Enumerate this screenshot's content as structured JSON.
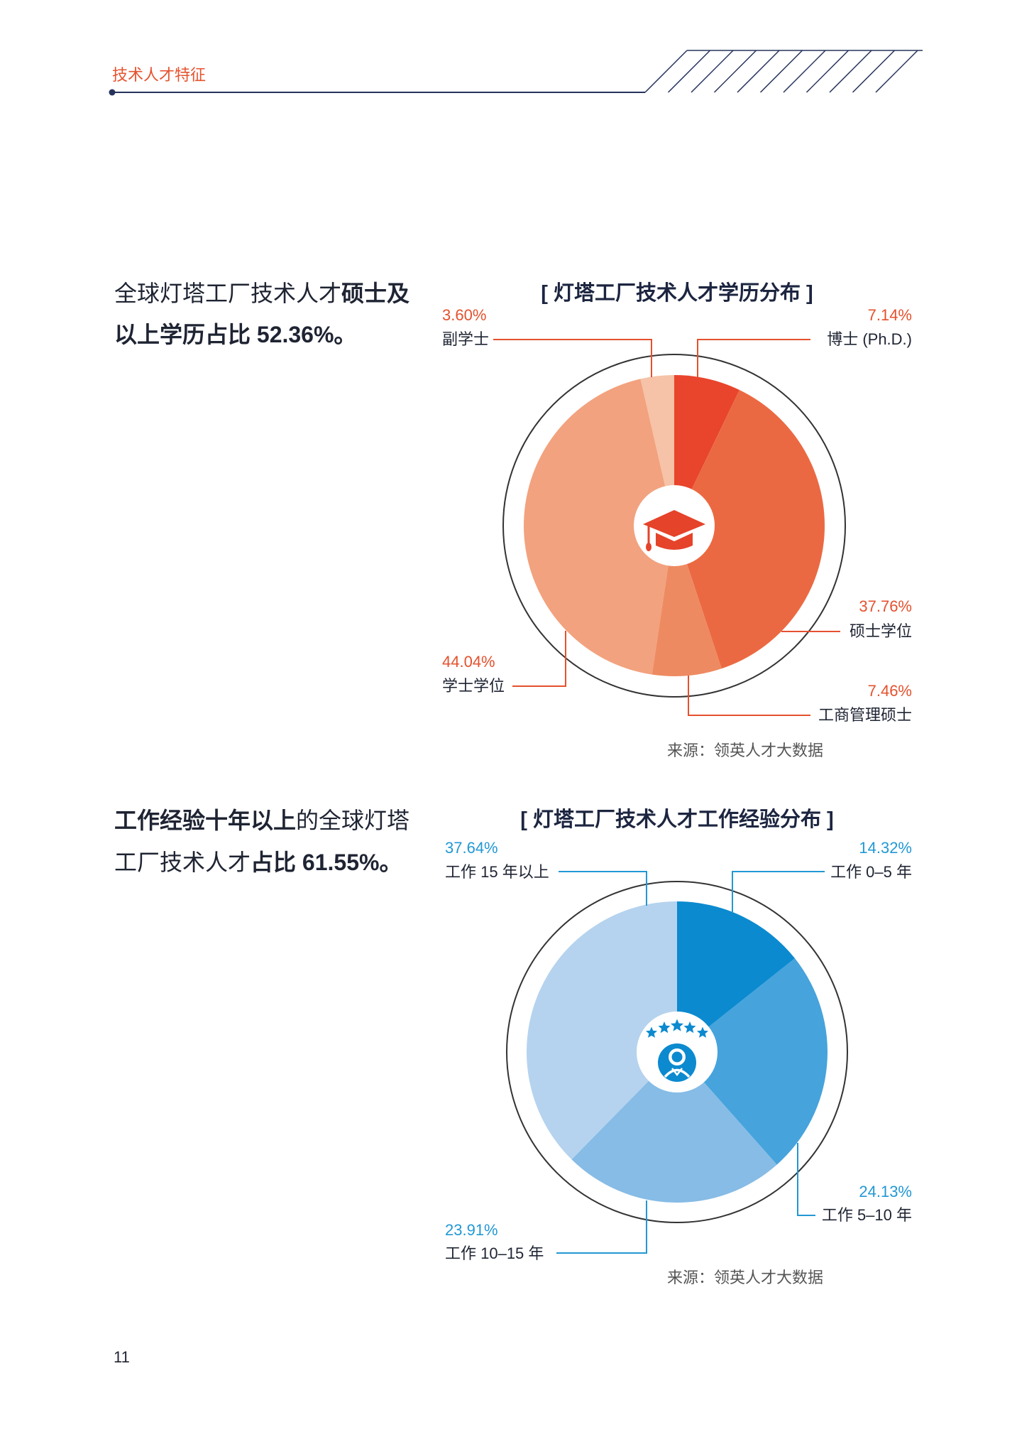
{
  "header": {
    "section_title": "技术人才特征"
  },
  "education": {
    "summary": {
      "line1_regular": "全球灯塔工厂技术人才",
      "line1_bold": "硕士及",
      "line2_bold": "以上学历占比 52.36%。"
    },
    "source": "来源：领英人才大数据"
  },
  "experience": {
    "summary": {
      "line1_bold": "工作经验十年以上",
      "line1_regular": "的全球灯塔",
      "line2_regular": "工厂技术人才",
      "line2_bold": "占比 61.55%。"
    },
    "source": "来源：领英人才大数据"
  },
  "page_number": "11",
  "colors": {
    "header_accent": "#E5532F",
    "rule_navy": "#26335C",
    "education_accent": "#E4512D",
    "experience_accent": "#2298D4",
    "text_dark": "#1F2433",
    "source_gray": "#555555"
  },
  "chart_data": [
    {
      "type": "pie",
      "title": "[ 灯塔工厂技术人才学历分布 ]",
      "center_icon": "graduation-cap-icon",
      "categories": [
        "博士 (Ph.D.)",
        "硕士学位",
        "工商管理硕士",
        "学士学位",
        "副学士"
      ],
      "values": [
        7.14,
        37.76,
        7.46,
        44.04,
        3.6
      ],
      "value_labels": [
        "7.14%",
        "37.76%",
        "7.46%",
        "44.04%",
        "3.60%"
      ],
      "colors": [
        "#E8452C",
        "#EB6942",
        "#EE8A61",
        "#F2A27E",
        "#F6C2A8"
      ]
    },
    {
      "type": "pie",
      "title": "[ 灯塔工厂技术人才工作经验分布 ]",
      "center_icon": "person-badge-stars-icon",
      "categories": [
        "工作 0–5 年",
        "工作 5–10 年",
        "工作 10–15 年",
        "工作 15 年以上"
      ],
      "values": [
        14.32,
        24.13,
        23.91,
        37.64
      ],
      "value_labels": [
        "14.32%",
        "24.13%",
        "23.91%",
        "37.64%"
      ],
      "colors": [
        "#0C8ACF",
        "#46A3DC",
        "#86BCE6",
        "#B5D3EE"
      ]
    }
  ]
}
